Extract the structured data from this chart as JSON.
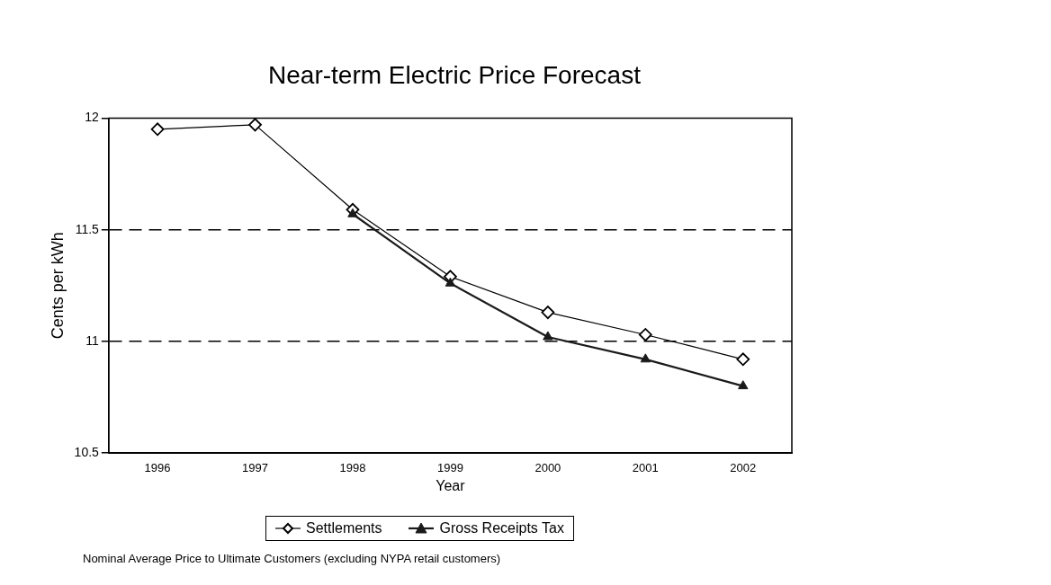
{
  "chart_data": {
    "type": "line",
    "title": "Near-term Electric Price Forecast",
    "xlabel": "Year",
    "ylabel": "Cents per kWh",
    "categories": [
      "1996",
      "1997",
      "1998",
      "1999",
      "2000",
      "2001",
      "2002"
    ],
    "series": [
      {
        "name": "Settlements",
        "color": "#000000",
        "marker": "diamond",
        "values": [
          11.95,
          11.97,
          11.59,
          11.29,
          11.13,
          11.03,
          10.92
        ]
      },
      {
        "name": "Gross Receipts Tax",
        "color": "#1a1a1a",
        "marker": "triangle",
        "values": [
          null,
          null,
          11.57,
          11.26,
          11.02,
          10.92,
          10.8
        ]
      }
    ],
    "ylim": [
      10.5,
      12
    ],
    "yticks": [
      10.5,
      11,
      11.5,
      12
    ],
    "grid": "y",
    "line_style": "solid",
    "legend": "bottom",
    "annotations": [
      "Nominal Average Price to Ultimate Customers (excluding NYPA retail customers)"
    ]
  }
}
